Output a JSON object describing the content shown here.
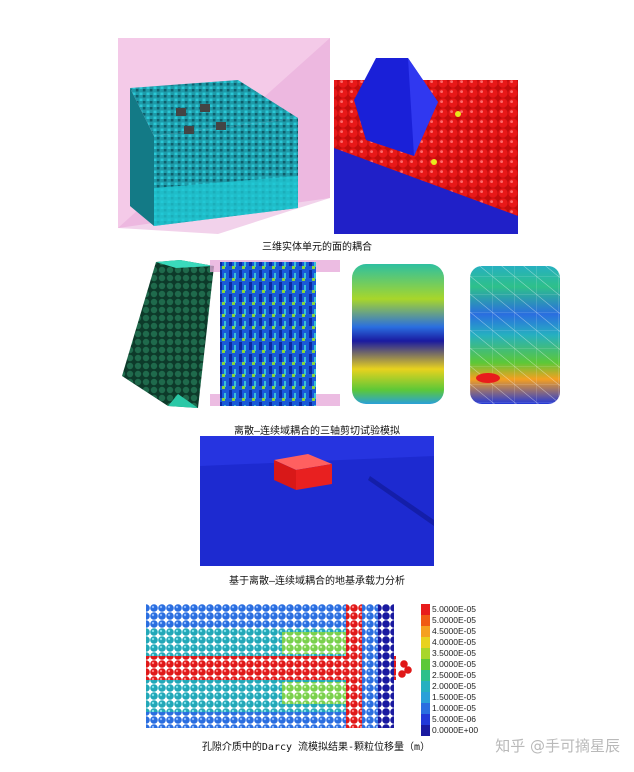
{
  "captions": {
    "fig1": "三维实体单元的面的耦合",
    "fig2": "离散—连续域耦合的三轴剪切试验模拟",
    "fig3": "基于离散—连续域耦合的地基承载力分析",
    "fig4": "孔隙介质中的Darcy 流模拟结果-颗粒位移量（m）"
  },
  "legend": {
    "entries": [
      "5.0000E-05",
      "5.0000E-05",
      "4.5000E-05",
      "4.0000E-05",
      "3.5000E-05",
      "3.0000E-05",
      "2.5000E-05",
      "2.0000E-05",
      "1.5000E-05",
      "1.0000E-05",
      "5.0000E-06",
      "0.0000E+00"
    ],
    "colors": [
      "#e81c1c",
      "#f05a14",
      "#f5a020",
      "#e8d21e",
      "#a8d62a",
      "#5cc838",
      "#2ec08a",
      "#26b0c0",
      "#2aa0d8",
      "#2a6ee0",
      "#2238d8",
      "#1a1aa0"
    ]
  },
  "watermark": "知乎 @手可摘星辰"
}
